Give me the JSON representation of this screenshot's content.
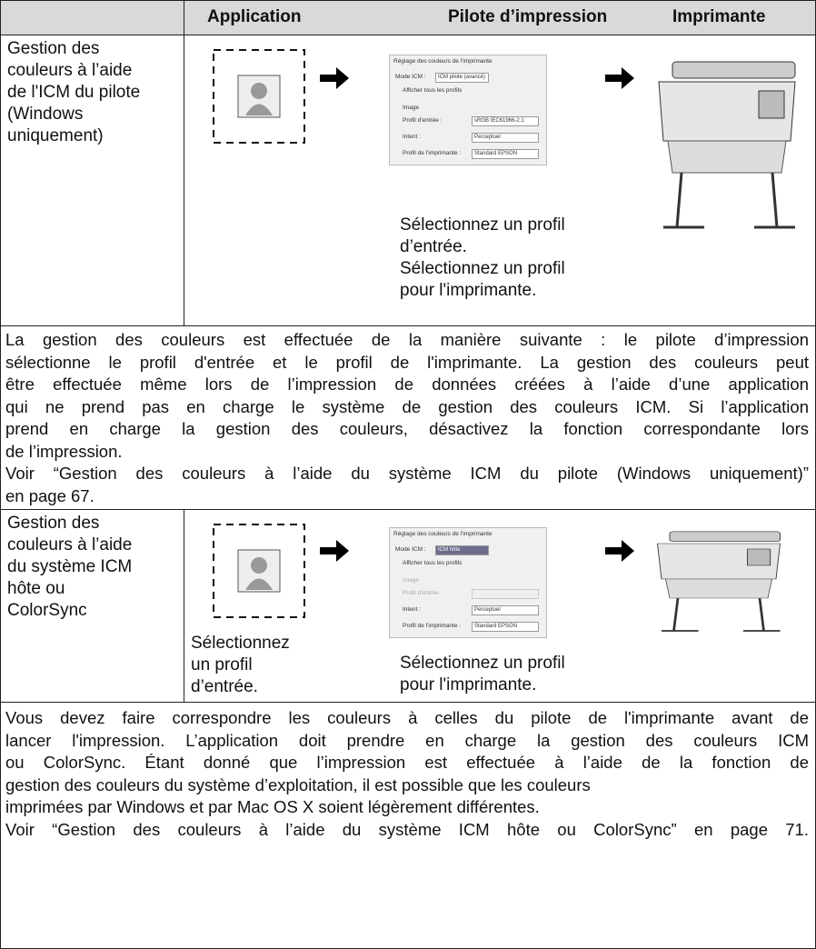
{
  "header": {
    "application": "Application",
    "driver": "Pilote d’impression",
    "printer": "Imprimante"
  },
  "rows": [
    {
      "label": [
        "Gestion des",
        "couleurs à l’aide",
        "de l'ICM du pilote",
        "(Windows",
        "uniquement)"
      ],
      "dialog": {
        "title": "Réglage des couleurs de l'imprimante",
        "mode_label": "Mode ICM :",
        "mode_value": "ICM pilote (avancé)",
        "show_all": "Afficher tous les profils",
        "image": "Image",
        "input_label": "Profil d'entrée :",
        "input_value": "sRGB IEC61966-2.1",
        "intent_label": "Intent :",
        "intent_value": "Perceptuel",
        "printer_label": "Profil de l'imprimante :",
        "printer_value": "Standard EPSON"
      },
      "driver_caption": [
        "Sélectionnez un profil",
        "d’entrée.",
        "Sélectionnez un profil",
        "pour l'imprimante."
      ]
    },
    {
      "text": [
        "La gestion des couleurs est effectuée de la manière suivante : le pilote d’impression",
        "sélectionne le profil d'entrée et le profil de l'imprimante. La gestion des couleurs peut",
        "être effectuée même lors de l’impression de données créées à l’aide d’une application",
        "qui ne prend pas en charge le système de gestion des couleurs ICM. Si l’application",
        "prend en charge la gestion des couleurs, désactivez la fonction correspondante lors",
        "de l’impression.",
        "Voir “Gestion des couleurs à l’aide du système ICM du pilote (Windows uniquement)”",
        "en page 67."
      ]
    },
    {
      "label": [
        "Gestion des",
        "couleurs à l’aide",
        "du système ICM",
        "hôte ou",
        "ColorSync"
      ],
      "app_caption": [
        "Sélectionnez",
        "un profil",
        "d’entrée."
      ],
      "dialog": {
        "title": "Réglage des couleurs de l'imprimante",
        "mode_label": "Mode ICM :",
        "mode_value": "ICM hôte",
        "show_all": "Afficher tous les profils",
        "image": "Image",
        "input_label": "Profil d'entrée :",
        "intent_label": "Intent :",
        "intent_value": "Perceptuel",
        "printer_label": "Profil de l'imprimante :",
        "printer_value": "Standard EPSON"
      },
      "driver_caption": [
        "Sélectionnez un profil",
        "pour l'imprimante."
      ]
    },
    {
      "text": [
        "Vous devez faire correspondre les couleurs à celles du pilote de l'imprimante avant de",
        "lancer l'impression. L’application doit prendre en charge la gestion des couleurs ICM",
        "ou ColorSync. Étant donné que l’impression est effectuée à l’aide de la fonction de",
        "gestion des couleurs du système d’exploitation, il est possible que les couleurs",
        "imprimées par Windows et par Mac OS X soient légèrement différentes.",
        "Voir “Gestion des couleurs à l’aide du système ICM hôte ou ColorSync” en page 71."
      ]
    }
  ]
}
